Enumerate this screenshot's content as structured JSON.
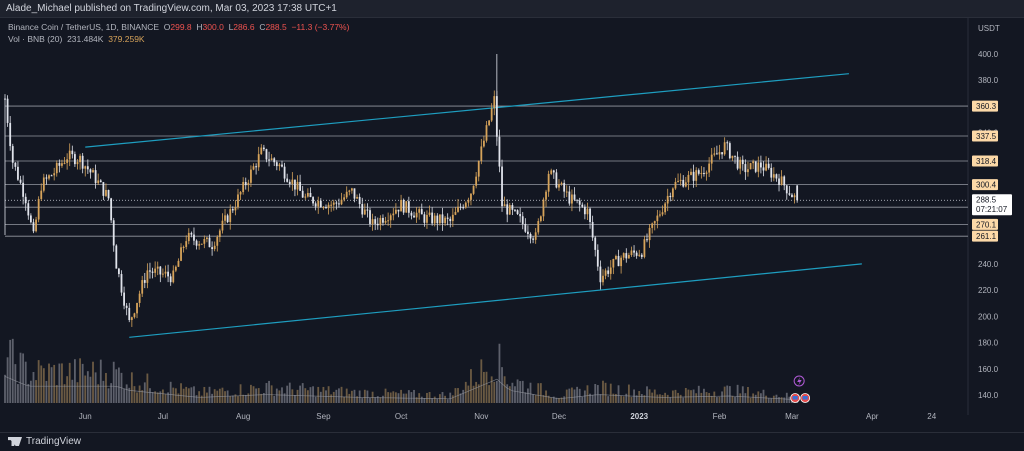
{
  "header": {
    "published_text": "Alade_Michael published on TradingView.com, Mar 03, 2023 17:38 UTC+1"
  },
  "legend": {
    "symbol": "Binance Coin / TetherUS, 1D, BINANCE",
    "o_label": "O",
    "o_value": "299.8",
    "h_label": "H",
    "h_value": "300.0",
    "l_label": "L",
    "l_value": "286.6",
    "c_label": "C",
    "c_value": "288.5",
    "change": "−11.3 (−3.77%)",
    "vol_label": "Vol · BNB (20)",
    "vol_value1": "231.484K",
    "vol_value2": "379.259K"
  },
  "footer": {
    "logo_text": "TradingView"
  },
  "colors": {
    "background": "#131722",
    "up_candle": "#d6a35a",
    "down_candle": "#e0e3eb",
    "channel_line": "#1e9ec0",
    "level_line": "#9598a1",
    "level_label_bg": "#fcd9a8",
    "current_label_bg": "#ffffff"
  },
  "chart_data": {
    "type": "candlestick",
    "currency": "USDT",
    "y_ticks": [
      "400.0",
      "380.0",
      "360.0",
      "340.0",
      "320.0",
      "300.0",
      "280.0",
      "260.0",
      "240.0",
      "220.0",
      "200.0",
      "180.0",
      "160.0",
      "140.0"
    ],
    "ylim": [
      128,
      410
    ],
    "x_ticks": [
      "Jun",
      "Jul",
      "Aug",
      "Sep",
      "Oct",
      "Nov",
      "Dec",
      "2023",
      "Feb",
      "Mar",
      "Apr",
      "24"
    ],
    "x_tick_dates": [
      "2022-06-01",
      "2022-07-01",
      "2022-08-01",
      "2022-09-01",
      "2022-10-01",
      "2022-11-01",
      "2022-12-01",
      "2023-01-01",
      "2023-02-01",
      "2023-03-01",
      "2023-04-01",
      "2023-04-24"
    ],
    "xlim": [
      "2022-05-01",
      "2023-05-08"
    ],
    "horizontal_levels": [
      {
        "value": 360.3,
        "label": "360.3"
      },
      {
        "value": 337.5,
        "label": "337.5"
      },
      {
        "value": 318.4,
        "label": "318.4"
      },
      {
        "value": 300.4,
        "label": "300.4"
      },
      {
        "value": 283.2,
        "label": "283.2"
      },
      {
        "value": 270.1,
        "label": "270.1"
      },
      {
        "value": 261.1,
        "label": "261.1"
      }
    ],
    "current_price": {
      "value": 288.5,
      "label": "288.5",
      "countdown": "07:21:07"
    },
    "channel_lines": [
      {
        "from": {
          "date": "2022-06-01",
          "value": 329
        },
        "to": {
          "date": "2023-03-23",
          "value": 385
        }
      },
      {
        "from": {
          "date": "2022-06-18",
          "value": 184
        },
        "to": {
          "date": "2023-03-28",
          "value": 240
        }
      }
    ],
    "close_path": [
      {
        "date": "2022-05-01",
        "value": 366
      },
      {
        "date": "2022-05-04",
        "value": 318
      },
      {
        "date": "2022-05-09",
        "value": 290
      },
      {
        "date": "2022-05-12",
        "value": 260
      },
      {
        "date": "2022-05-15",
        "value": 300
      },
      {
        "date": "2022-05-20",
        "value": 310
      },
      {
        "date": "2022-05-25",
        "value": 322
      },
      {
        "date": "2022-05-30",
        "value": 320
      },
      {
        "date": "2022-06-05",
        "value": 305
      },
      {
        "date": "2022-06-10",
        "value": 290
      },
      {
        "date": "2022-06-13",
        "value": 240
      },
      {
        "date": "2022-06-18",
        "value": 195
      },
      {
        "date": "2022-06-25",
        "value": 235
      },
      {
        "date": "2022-07-05",
        "value": 230
      },
      {
        "date": "2022-07-10",
        "value": 260
      },
      {
        "date": "2022-07-20",
        "value": 255
      },
      {
        "date": "2022-07-30",
        "value": 290
      },
      {
        "date": "2022-08-08",
        "value": 325
      },
      {
        "date": "2022-08-15",
        "value": 315
      },
      {
        "date": "2022-08-25",
        "value": 290
      },
      {
        "date": "2022-09-05",
        "value": 285
      },
      {
        "date": "2022-09-12",
        "value": 295
      },
      {
        "date": "2022-09-20",
        "value": 270
      },
      {
        "date": "2022-10-01",
        "value": 285
      },
      {
        "date": "2022-10-10",
        "value": 275
      },
      {
        "date": "2022-10-20",
        "value": 272
      },
      {
        "date": "2022-10-28",
        "value": 295
      },
      {
        "date": "2022-11-06",
        "value": 365
      },
      {
        "date": "2022-11-09",
        "value": 285
      },
      {
        "date": "2022-11-15",
        "value": 275
      },
      {
        "date": "2022-11-22",
        "value": 260
      },
      {
        "date": "2022-11-27",
        "value": 310
      },
      {
        "date": "2022-12-05",
        "value": 290
      },
      {
        "date": "2022-12-12",
        "value": 280
      },
      {
        "date": "2022-12-17",
        "value": 230
      },
      {
        "date": "2022-12-25",
        "value": 245
      },
      {
        "date": "2023-01-02",
        "value": 250
      },
      {
        "date": "2023-01-14",
        "value": 300
      },
      {
        "date": "2023-01-25",
        "value": 310
      },
      {
        "date": "2023-02-03",
        "value": 330
      },
      {
        "date": "2023-02-10",
        "value": 312
      },
      {
        "date": "2023-02-17",
        "value": 315
      },
      {
        "date": "2023-02-24",
        "value": 305
      },
      {
        "date": "2023-03-03",
        "value": 288
      }
    ],
    "volume_path": [
      {
        "date": "2022-05-01",
        "value": 0.95
      },
      {
        "date": "2022-05-10",
        "value": 0.6
      },
      {
        "date": "2022-06-13",
        "value": 0.6
      },
      {
        "date": "2022-06-18",
        "value": 0.45
      },
      {
        "date": "2022-07-15",
        "value": 0.2
      },
      {
        "date": "2022-08-10",
        "value": 0.3
      },
      {
        "date": "2022-09-15",
        "value": 0.2
      },
      {
        "date": "2022-10-20",
        "value": 0.15
      },
      {
        "date": "2022-11-07",
        "value": 0.85
      },
      {
        "date": "2022-11-12",
        "value": 0.45
      },
      {
        "date": "2022-12-01",
        "value": 0.15
      },
      {
        "date": "2022-12-16",
        "value": 0.3
      },
      {
        "date": "2023-01-10",
        "value": 0.2
      },
      {
        "date": "2023-02-05",
        "value": 0.25
      },
      {
        "date": "2023-03-03",
        "value": 0.12
      }
    ]
  }
}
